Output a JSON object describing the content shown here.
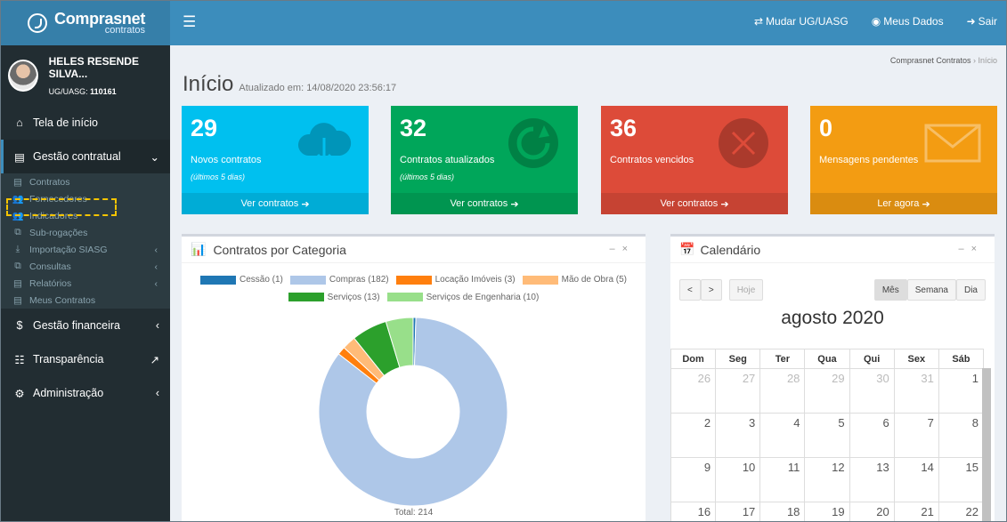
{
  "app": {
    "logo_main": "Comprasnet",
    "logo_sub": "contratos"
  },
  "topnav": {
    "change_ug": "Mudar UG/UASG",
    "my_data": "Meus Dados",
    "logout": "Sair"
  },
  "user": {
    "name": "HELES RESENDE SILVA...",
    "ug_label": "UG/UASG:",
    "ug_code": "110161"
  },
  "sidebar": {
    "home": "Tela de início",
    "contract_mgmt": "Gestão contratual",
    "sub_items": [
      "Contratos",
      "Fornecedores",
      "Indicadores",
      "Sub-rogações",
      "Importação SIASG",
      "Consultas",
      "Relatórios",
      "Meus Contratos"
    ],
    "financial": "Gestão financeira",
    "transparency": "Transparência",
    "admin": "Administração"
  },
  "page": {
    "title": "Início",
    "updated": "Atualizado em: 14/08/2020 23:56:17",
    "breadcrumb_root": "Comprasnet Contratos",
    "breadcrumb_current": "Início"
  },
  "boxes": [
    {
      "num": "29",
      "label": "Novos contratos",
      "sub": "(últimos 5 dias)",
      "link": "Ver contratos",
      "color": "#00c0ef"
    },
    {
      "num": "32",
      "label": "Contratos atualizados",
      "sub": "(últimos 5 dias)",
      "link": "Ver contratos",
      "color": "#00a65a"
    },
    {
      "num": "36",
      "label": "Contratos vencidos",
      "sub": "",
      "link": "Ver contratos",
      "color": "#dd4b39"
    },
    {
      "num": "0",
      "label": "Mensagens pendentes",
      "sub": "",
      "link": "Ler agora",
      "color": "#f39c12"
    }
  ],
  "chart_panel": {
    "title": "Contratos por Categoria",
    "total": "Total: 214"
  },
  "chart_data": {
    "type": "pie",
    "categories": [
      "Cessão (1)",
      "Compras (182)",
      "Locação Imóveis (3)",
      "Mão de Obra (5)",
      "Serviços (13)",
      "Serviços de Engenharia (10)"
    ],
    "values": [
      1,
      182,
      3,
      5,
      13,
      10
    ],
    "colors": [
      "#1f77b4",
      "#aec7e8",
      "#ff7f0e",
      "#ffbb78",
      "#2ca02c",
      "#98df8a"
    ],
    "legend": "top"
  },
  "calendar": {
    "title": "Calendário",
    "today": "Hoje",
    "views": [
      "Mês",
      "Semana",
      "Dia"
    ],
    "month": "agosto 2020",
    "weekdays": [
      "Dom",
      "Seg",
      "Ter",
      "Qua",
      "Qui",
      "Sex",
      "Sáb"
    ],
    "weeks": [
      [
        "26",
        "27",
        "28",
        "29",
        "30",
        "31",
        "1"
      ],
      [
        "2",
        "3",
        "4",
        "5",
        "6",
        "7",
        "8"
      ],
      [
        "9",
        "10",
        "11",
        "12",
        "13",
        "14",
        "15"
      ],
      [
        "16",
        "17",
        "18",
        "19",
        "20",
        "21",
        "22"
      ]
    ]
  }
}
